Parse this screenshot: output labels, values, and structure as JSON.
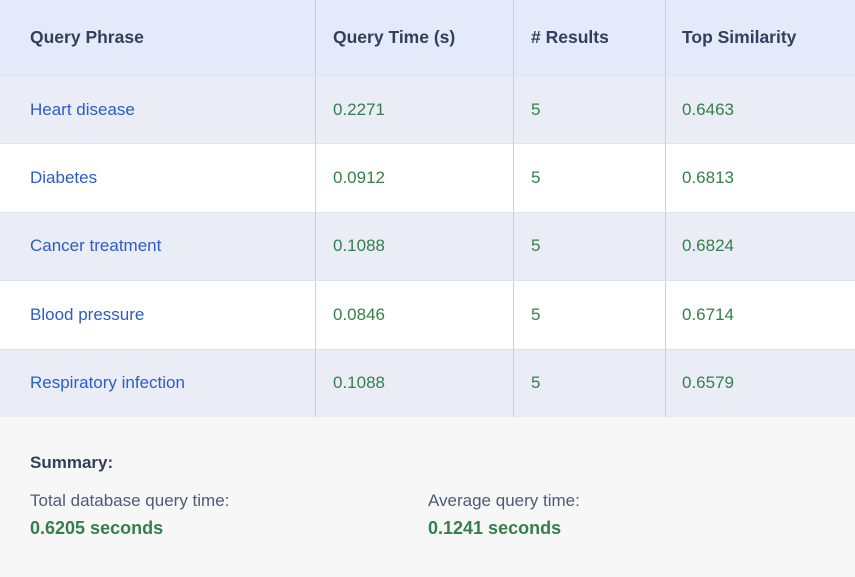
{
  "table": {
    "columns": [
      {
        "label": "Query Phrase"
      },
      {
        "label": "Query Time (s)"
      },
      {
        "label": "# Results"
      },
      {
        "label": "Top Similarity"
      }
    ],
    "rows": [
      {
        "phrase": "Heart disease",
        "time": "0.2271",
        "results": "5",
        "similarity": "0.6463"
      },
      {
        "phrase": "Diabetes",
        "time": "0.0912",
        "results": "5",
        "similarity": "0.6813"
      },
      {
        "phrase": "Cancer treatment",
        "time": "0.1088",
        "results": "5",
        "similarity": "0.6824"
      },
      {
        "phrase": "Blood pressure",
        "time": "0.0846",
        "results": "5",
        "similarity": "0.6714"
      },
      {
        "phrase": "Respiratory infection",
        "time": "0.1088",
        "results": "5",
        "similarity": "0.6579"
      }
    ]
  },
  "summary": {
    "title": "Summary:",
    "items": [
      {
        "label": "Total database query time:",
        "value": "0.6205 seconds"
      },
      {
        "label": "Average query time:",
        "value": "0.1241 seconds"
      }
    ]
  },
  "colors": {
    "header_background": "#e4eaf9",
    "alt_row_background": "#eaedf6",
    "summary_background": "#f7f7f8",
    "column_divider": "#c7cfe0",
    "row_divider": "#dde2ef",
    "header_text": "#31405f",
    "phrase_blue": "#2b5ccb",
    "value_green": "#358049",
    "summary_label_slate": "#4c5b77"
  }
}
